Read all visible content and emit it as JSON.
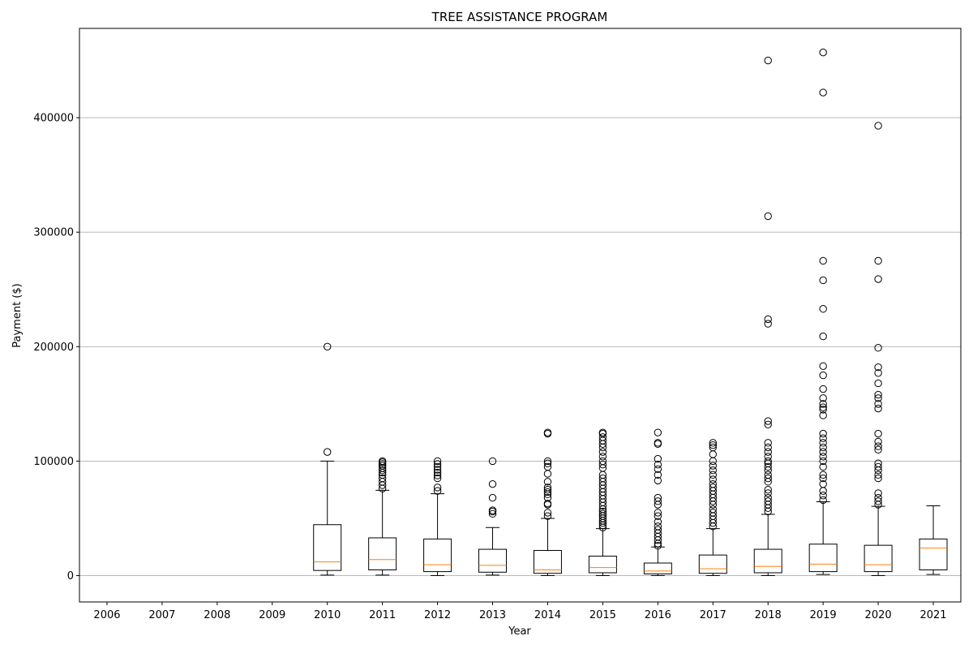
{
  "chart_data": {
    "type": "box",
    "title": "TREE ASSISTANCE PROGRAM",
    "xlabel": "Year",
    "ylabel": "Payment ($)",
    "categories": [
      "2006",
      "2007",
      "2008",
      "2009",
      "2010",
      "2011",
      "2012",
      "2013",
      "2014",
      "2015",
      "2016",
      "2017",
      "2018",
      "2019",
      "2020",
      "2021"
    ],
    "ylim": [
      -23000,
      478000
    ],
    "yticks": [
      0,
      100000,
      200000,
      300000,
      400000
    ],
    "ytick_labels": [
      "0",
      "100000",
      "200000",
      "300000",
      "400000"
    ],
    "grid": "y",
    "colors": {
      "box": "#000000",
      "median": "#ff7f0e",
      "grid": "#b0b0b0"
    },
    "boxes": [
      {
        "year": "2006",
        "empty": true
      },
      {
        "year": "2007",
        "empty": true
      },
      {
        "year": "2008",
        "empty": true
      },
      {
        "year": "2009",
        "empty": true
      },
      {
        "year": "2010",
        "whislo": 500,
        "q1": 4500,
        "med": 12000,
        "q3": 44500,
        "whishi": 100000,
        "fliers": [
          108000,
          200000
        ]
      },
      {
        "year": "2011",
        "whislo": 500,
        "q1": 5000,
        "med": 14000,
        "q3": 33000,
        "whishi": 74500,
        "fliers": [
          76000,
          79000,
          82000,
          85000,
          88000,
          90000,
          92000,
          94000,
          96000,
          97500,
          99000,
          100000
        ]
      },
      {
        "year": "2012",
        "whislo": 0,
        "q1": 3500,
        "med": 9500,
        "q3": 32000,
        "whishi": 71500,
        "fliers": [
          74000,
          77000,
          85000,
          87500,
          90000,
          92500,
          95000,
          97500,
          100000
        ]
      },
      {
        "year": "2013",
        "whislo": 500,
        "q1": 3000,
        "med": 9000,
        "q3": 23000,
        "whishi": 42000,
        "fliers": [
          54000,
          56000,
          57000,
          68000,
          80000,
          100000
        ]
      },
      {
        "year": "2014",
        "whislo": 0,
        "q1": 2000,
        "med": 5000,
        "q3": 22000,
        "whishi": 50000,
        "fliers": [
          52000,
          55000,
          62000,
          63000,
          68000,
          71000,
          73000,
          75000,
          77000,
          82000,
          89000,
          95000,
          98000,
          100000,
          124000,
          125000
        ]
      },
      {
        "year": "2015",
        "whislo": 0,
        "q1": 2500,
        "med": 7000,
        "q3": 17000,
        "whishi": 41000,
        "fliers": [
          42000,
          44000,
          46000,
          48000,
          50000,
          52000,
          54000,
          56000,
          58000,
          61000,
          64000,
          67000,
          70000,
          73000,
          76000,
          79000,
          82000,
          85000,
          88000,
          94000,
          97000,
          100000,
          104000,
          108000,
          112000,
          115000,
          118000,
          121000,
          124000,
          125000
        ]
      },
      {
        "year": "2016",
        "whislo": 0,
        "q1": 1500,
        "med": 4000,
        "q3": 11000,
        "whishi": 25000,
        "fliers": [
          26000,
          28000,
          31000,
          34000,
          37000,
          40000,
          43000,
          47000,
          52000,
          55000,
          62000,
          65000,
          68000,
          83000,
          88000,
          93000,
          97000,
          102000,
          115000,
          116000,
          125000
        ]
      },
      {
        "year": "2017",
        "whislo": 0,
        "q1": 2000,
        "med": 6000,
        "q3": 18000,
        "whishi": 41000,
        "fliers": [
          43000,
          46000,
          49000,
          52000,
          55000,
          58000,
          62000,
          65000,
          68000,
          71000,
          74000,
          77000,
          80000,
          84000,
          88000,
          92000,
          96000,
          100000,
          106000,
          112000,
          114000,
          116000
        ]
      },
      {
        "year": "2018",
        "whislo": 0,
        "q1": 2500,
        "med": 8000,
        "q3": 23000,
        "whishi": 53500,
        "fliers": [
          56000,
          59000,
          62000,
          65000,
          68000,
          72000,
          75000,
          82000,
          85000,
          88000,
          92000,
          95000,
          98000,
          100000,
          104000,
          108000,
          112000,
          116000,
          132000,
          135000,
          220000,
          224000,
          314000,
          450000
        ]
      },
      {
        "year": "2019",
        "whislo": 1000,
        "q1": 3500,
        "med": 10000,
        "q3": 27500,
        "whishi": 64500,
        "fliers": [
          66000,
          70000,
          74000,
          80000,
          85000,
          88000,
          95000,
          100000,
          104000,
          108000,
          112000,
          116000,
          120000,
          124000,
          140000,
          145000,
          147000,
          150000,
          155000,
          163000,
          175000,
          183000,
          209000,
          233000,
          258000,
          275000,
          422000,
          457000
        ]
      },
      {
        "year": "2020",
        "whislo": 0,
        "q1": 3500,
        "med": 9500,
        "q3": 26500,
        "whishi": 60500,
        "fliers": [
          62000,
          65000,
          68000,
          72000,
          85000,
          88000,
          92000,
          95000,
          98000,
          110000,
          113000,
          117000,
          124000,
          146000,
          150000,
          155000,
          158000,
          168000,
          177000,
          182000,
          199000,
          259000,
          275000,
          393000
        ]
      },
      {
        "year": "2021",
        "whislo": 1000,
        "q1": 5000,
        "med": 24000,
        "q3": 32000,
        "whishi": 61000,
        "fliers": []
      }
    ]
  }
}
